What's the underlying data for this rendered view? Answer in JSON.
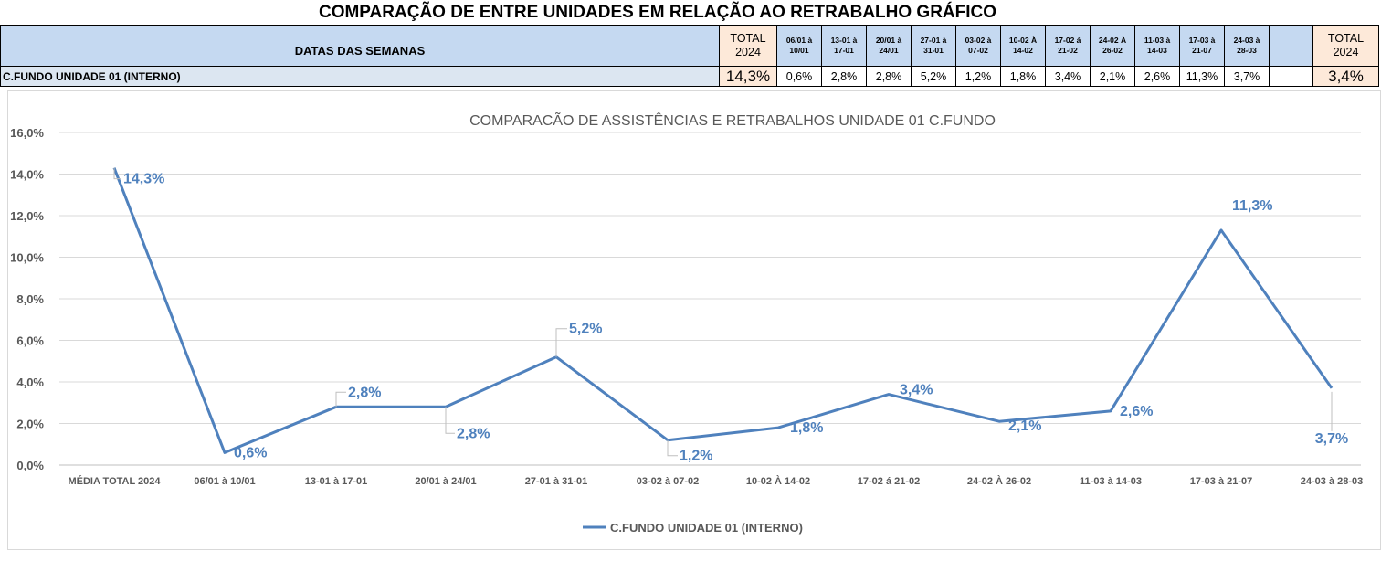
{
  "sheet": {
    "title": "COMPARAÇÃO DE ENTRE UNIDADES EM RELAÇÃO AO RETRABALHO GRÁFICO",
    "datas_label": "DATAS DAS SEMANAS",
    "total_label_line1": "TOTAL",
    "total_label_line2": "2024",
    "weeks": [
      {
        "l1": "06/01 à",
        "l2": "10/01"
      },
      {
        "l1": "13-01 à",
        "l2": "17-01"
      },
      {
        "l1": "20/01 à",
        "l2": "24/01"
      },
      {
        "l1": "27-01 à",
        "l2": "31-01"
      },
      {
        "l1": "03-02 à",
        "l2": "07-02"
      },
      {
        "l1": "10-02 À",
        "l2": "14-02"
      },
      {
        "l1": "17-02 á",
        "l2": "21-02"
      },
      {
        "l1": "24-02 À",
        "l2": "26-02"
      },
      {
        "l1": "11-03 à",
        "l2": "14-03"
      },
      {
        "l1": "17-03 à",
        "l2": "21-07"
      },
      {
        "l1": "24-03 à",
        "l2": "28-03"
      }
    ],
    "unit_label": "C.FUNDO UNIDADE 01 (INTERNO)",
    "total_value": "14,3%",
    "week_values": [
      "0,6%",
      "2,8%",
      "2,8%",
      "5,2%",
      "1,2%",
      "1,8%",
      "3,4%",
      "2,1%",
      "2,6%",
      "11,3%",
      "3,7%"
    ],
    "total_value_2": "3,4%"
  },
  "chart_data": {
    "type": "line",
    "title": "COMPARACÃO DE ASSISTÊNCIAS E RETRABALHOS UNIDADE 01 C.FUNDO",
    "categories": [
      "MÉDIA TOTAL 2024",
      "06/01 à 10/01",
      "13-01 à 17-01",
      "20/01 à 24/01",
      "27-01 à 31-01",
      "03-02 à 07-02",
      "10-02 À 14-02",
      "17-02 á 21-02",
      "24-02 À 26-02",
      "11-03 à 14-03",
      "17-03 à 21-07",
      "24-03 à 28-03"
    ],
    "series": [
      {
        "name": "C.FUNDO UNIDADE 01 (INTERNO)",
        "values": [
          14.3,
          0.6,
          2.8,
          2.8,
          5.2,
          1.2,
          1.8,
          3.4,
          2.1,
          2.6,
          11.3,
          3.7
        ],
        "color": "#4f81bd"
      }
    ],
    "data_labels": [
      "14,3%",
      "0,6%",
      "2,8%",
      "2,8%",
      "5,2%",
      "1,2%",
      "1,8%",
      "3,4%",
      "2,1%",
      "2,6%",
      "11,3%",
      "3,7%"
    ],
    "label_color": "#4f81bd",
    "yticks": [
      "0,0%",
      "2,0%",
      "4,0%",
      "6,0%",
      "8,0%",
      "10,0%",
      "12,0%",
      "14,0%",
      "16,0%"
    ],
    "ylim": [
      0,
      16
    ],
    "grid": true,
    "legend_position": "bottom"
  }
}
